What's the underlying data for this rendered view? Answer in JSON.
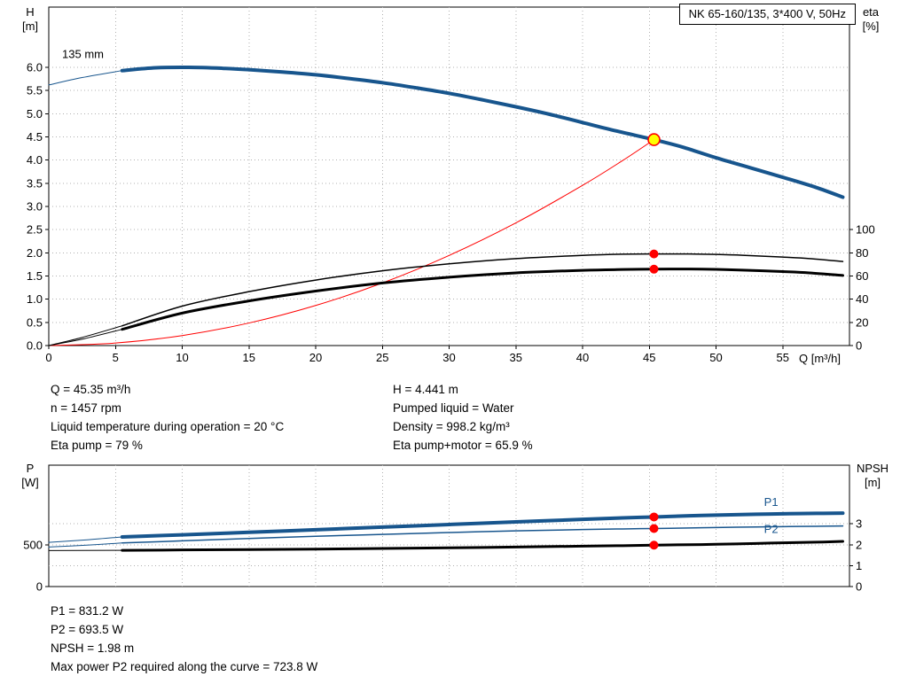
{
  "colors": {
    "curve_blue": "#17558d",
    "curve_red": "#ff0000",
    "curve_black": "#000000",
    "grid": "#b0b0b0",
    "marker_yellow": "#ffff00"
  },
  "chart_data": [
    {
      "type": "line",
      "title": "NK 65-160/135, 3*400 V, 50Hz",
      "xlabel": "Q [m³/h]",
      "ylabel_left": "H\n[m]",
      "ylabel_right": "eta\n[%]",
      "xlim": [
        0,
        60
      ],
      "ylim_left": [
        0,
        7.3
      ],
      "ylim_right": [
        0,
        292
      ],
      "grid": true,
      "x_ticks": {
        "values": [
          0,
          5,
          10,
          15,
          20,
          25,
          30,
          35,
          40,
          45,
          50,
          55
        ],
        "labels": [
          "0",
          "5",
          "10",
          "15",
          "20",
          "25",
          "30",
          "35",
          "40",
          "45",
          "50",
          "55"
        ]
      },
      "y_left_ticks": {
        "values": [
          0,
          0.5,
          1,
          1.5,
          2,
          2.5,
          3,
          3.5,
          4,
          4.5,
          5,
          5.5,
          6
        ],
        "labels": [
          "0.0",
          "0.5",
          "1.0",
          "1.5",
          "2.0",
          "2.5",
          "3.0",
          "3.5",
          "4.0",
          "4.5",
          "5.0",
          "5.5",
          "6.0"
        ]
      },
      "y_right_ticks": {
        "values": [
          0,
          20,
          40,
          60,
          80,
          100
        ],
        "labels": [
          "0",
          "20",
          "40",
          "60",
          "80",
          "100"
        ]
      },
      "grid_y": {
        "axis": "left",
        "values": [
          0.5,
          1,
          1.5,
          2,
          2.5,
          3,
          3.5,
          4,
          4.5,
          5,
          5.5,
          6
        ]
      },
      "series": [
        {
          "id": "system-curve",
          "name": "System resistance curve",
          "axis": "left",
          "color": "curve_red",
          "width": 1,
          "points": [
            [
              0,
              0
            ],
            [
              5,
              0.054
            ],
            [
              10,
              0.216
            ],
            [
              15,
              0.486
            ],
            [
              20,
              0.864
            ],
            [
              25,
              1.35
            ],
            [
              30,
              1.944
            ],
            [
              35,
              2.646
            ],
            [
              40,
              3.455
            ],
            [
              43,
              3.99
            ],
            [
              45.35,
              4.441
            ]
          ]
        },
        {
          "id": "h-curve",
          "name": "H, impeller 135 mm",
          "axis": "left",
          "color": "curve_blue",
          "width": 4,
          "lead_in": [
            [
              0,
              5.62
            ],
            [
              2.5,
              5.78
            ],
            [
              5.5,
              5.93
            ]
          ],
          "points": [
            [
              5.5,
              5.93
            ],
            [
              8,
              5.99
            ],
            [
              10.5,
              6.0
            ],
            [
              13,
              5.98
            ],
            [
              15,
              5.95
            ],
            [
              17.5,
              5.9
            ],
            [
              20,
              5.84
            ],
            [
              22.5,
              5.76
            ],
            [
              25,
              5.67
            ],
            [
              27.5,
              5.56
            ],
            [
              30,
              5.44
            ],
            [
              32.5,
              5.3
            ],
            [
              35,
              5.15
            ],
            [
              37.5,
              4.99
            ],
            [
              40,
              4.81
            ],
            [
              42.5,
              4.63
            ],
            [
              45.35,
              4.441
            ],
            [
              47.5,
              4.28
            ],
            [
              50,
              4.05
            ],
            [
              52.5,
              3.84
            ],
            [
              55,
              3.63
            ],
            [
              57.5,
              3.41
            ],
            [
              59.5,
              3.2
            ]
          ]
        },
        {
          "id": "eta-pump-curve",
          "name": "Eta pump",
          "axis": "right",
          "color": "curve_black",
          "width": 1.5,
          "lead_in": [
            [
              0,
              0
            ],
            [
              2.5,
              7
            ],
            [
              5.5,
              17
            ]
          ],
          "points": [
            [
              5.5,
              17
            ],
            [
              10,
              34
            ],
            [
              15,
              46.5
            ],
            [
              20,
              56.5
            ],
            [
              25,
              64.5
            ],
            [
              30,
              70.5
            ],
            [
              35,
              75
            ],
            [
              40,
              77.8
            ],
            [
              43,
              78.8
            ],
            [
              45.35,
              79
            ],
            [
              48,
              79
            ],
            [
              50,
              78.6
            ],
            [
              52,
              77.9
            ],
            [
              55,
              76.3
            ],
            [
              57,
              75
            ],
            [
              59.5,
              72.5
            ]
          ]
        },
        {
          "id": "eta-pump-motor-curve",
          "name": "Eta pump+motor",
          "axis": "right",
          "color": "curve_black",
          "width": 3,
          "lead_in": [
            [
              0,
              0
            ],
            [
              2.5,
              5.5
            ],
            [
              5.5,
              14
            ]
          ],
          "points": [
            [
              5.5,
              14
            ],
            [
              10,
              28
            ],
            [
              15,
              38.5
            ],
            [
              20,
              47
            ],
            [
              25,
              54
            ],
            [
              30,
              59
            ],
            [
              35,
              62.7
            ],
            [
              40,
              64.9
            ],
            [
              43,
              65.6
            ],
            [
              45.35,
              65.9
            ],
            [
              48,
              66
            ],
            [
              50,
              65.7
            ],
            [
              52,
              65.1
            ],
            [
              55,
              63.8
            ],
            [
              57,
              62.7
            ],
            [
              59.5,
              60.5
            ]
          ]
        }
      ],
      "markers": [
        {
          "id": "duty-point",
          "style": "duty",
          "axis": "left",
          "x": 45.35,
          "y": 4.441
        },
        {
          "id": "eta-pump-point",
          "style": "dot",
          "axis": "right",
          "x": 45.35,
          "y": 79
        },
        {
          "id": "eta-pump-motor-point",
          "style": "dot",
          "axis": "right",
          "x": 45.35,
          "y": 65.9
        }
      ],
      "annotations": [
        {
          "id": "impeller-diameter-label",
          "text": "135 mm",
          "axis": "left",
          "x": 1.0,
          "y": 6.2,
          "anchor": "start",
          "color": "curve_black"
        }
      ]
    },
    {
      "type": "line",
      "xlabel": "",
      "ylabel_left": "P\n[W]",
      "ylabel_right": "NPSH\n[m]",
      "xlim": [
        0,
        60
      ],
      "ylim_left": [
        0,
        1450
      ],
      "ylim_right": [
        0,
        5.8
      ],
      "grid": true,
      "x_ticks": {
        "values": [
          5,
          10,
          15,
          20,
          25,
          30,
          35,
          40,
          45,
          50,
          55
        ],
        "labels": []
      },
      "y_left_ticks": {
        "values": [
          0,
          500
        ],
        "labels": [
          "0",
          "500"
        ]
      },
      "y_right_ticks": {
        "values": [
          0,
          1,
          2,
          3
        ],
        "labels": [
          "0",
          "1",
          "2",
          "3"
        ]
      },
      "grid_y": {
        "axis": "right",
        "values": [
          1,
          2,
          3
        ]
      },
      "series": [
        {
          "id": "p1-curve",
          "name": "P1 input power",
          "axis": "left",
          "color": "curve_blue",
          "width": 4,
          "lead_in": [
            [
              0,
              528
            ],
            [
              3,
              560
            ],
            [
              5.5,
              593
            ]
          ],
          "points": [
            [
              5.5,
              593
            ],
            [
              10,
              618
            ],
            [
              15,
              648
            ],
            [
              20,
              679
            ],
            [
              25,
              710
            ],
            [
              30,
              741
            ],
            [
              35,
              772
            ],
            [
              40,
              803
            ],
            [
              43,
              820
            ],
            [
              45.35,
              831.2
            ],
            [
              48,
              845
            ],
            [
              50,
              853
            ],
            [
              53,
              864
            ],
            [
              55,
              869
            ],
            [
              57.5,
              874
            ],
            [
              59.5,
              877
            ]
          ]
        },
        {
          "id": "p2-curve",
          "name": "P2 shaft power",
          "axis": "left",
          "color": "curve_blue",
          "width": 1.5,
          "lead_in": [
            [
              0,
              472
            ],
            [
              3,
              496
            ],
            [
              5.5,
              521
            ]
          ],
          "points": [
            [
              5.5,
              521
            ],
            [
              10,
              546
            ],
            [
              15,
              574
            ],
            [
              20,
              601
            ],
            [
              25,
              623
            ],
            [
              30,
              645
            ],
            [
              35,
              665
            ],
            [
              40,
              681
            ],
            [
              43,
              688.5
            ],
            [
              45.35,
              693.5
            ],
            [
              48,
              700
            ],
            [
              50,
              705
            ],
            [
              53,
              712
            ],
            [
              55,
              716
            ],
            [
              57.5,
              720
            ],
            [
              59.5,
              723.8
            ]
          ]
        },
        {
          "id": "npsh-curve",
          "name": "NPSH",
          "axis": "right",
          "color": "curve_black",
          "width": 3,
          "lead_in": [
            [
              0,
              1.72
            ],
            [
              5.5,
              1.73
            ]
          ],
          "points": [
            [
              5.5,
              1.73
            ],
            [
              10,
              1.75
            ],
            [
              15,
              1.77
            ],
            [
              20,
              1.79
            ],
            [
              25,
              1.82
            ],
            [
              30,
              1.85
            ],
            [
              35,
              1.89
            ],
            [
              40,
              1.93
            ],
            [
              43,
              1.955
            ],
            [
              45.35,
              1.98
            ],
            [
              48,
              2.0
            ],
            [
              50,
              2.02
            ],
            [
              53,
              2.06
            ],
            [
              55,
              2.09
            ],
            [
              57.5,
              2.12
            ],
            [
              59.5,
              2.16
            ]
          ]
        }
      ],
      "markers": [
        {
          "id": "p1-point",
          "style": "dot",
          "axis": "left",
          "x": 45.35,
          "y": 831.2
        },
        {
          "id": "p2-point",
          "style": "dot",
          "axis": "left",
          "x": 45.35,
          "y": 693.5
        },
        {
          "id": "npsh-point",
          "style": "dot",
          "axis": "right",
          "x": 45.35,
          "y": 1.98
        }
      ],
      "annotations": [
        {
          "id": "p1-label",
          "text": "P1",
          "axis": "left",
          "x": 53.6,
          "y": 965,
          "anchor": "start",
          "color": "curve_blue"
        },
        {
          "id": "p2-label",
          "text": "P2",
          "axis": "left",
          "x": 53.6,
          "y": 640,
          "anchor": "start",
          "color": "curve_blue"
        }
      ]
    }
  ],
  "operating_data": {
    "left": [
      "Q = 45.35 m³/h",
      "n = 1457 rpm",
      "Liquid temperature during operation = 20 °C",
      "Eta pump = 79 %"
    ],
    "right": [
      "H = 4.441 m",
      "Pumped liquid = Water",
      "Density = 998.2 kg/m³",
      "Eta pump+motor = 65.9 %"
    ]
  },
  "power_data": [
    "P1 = 831.2 W",
    "P2 = 693.5 W",
    "NPSH = 1.98 m",
    "Max power P2 required along the curve = 723.8 W"
  ]
}
